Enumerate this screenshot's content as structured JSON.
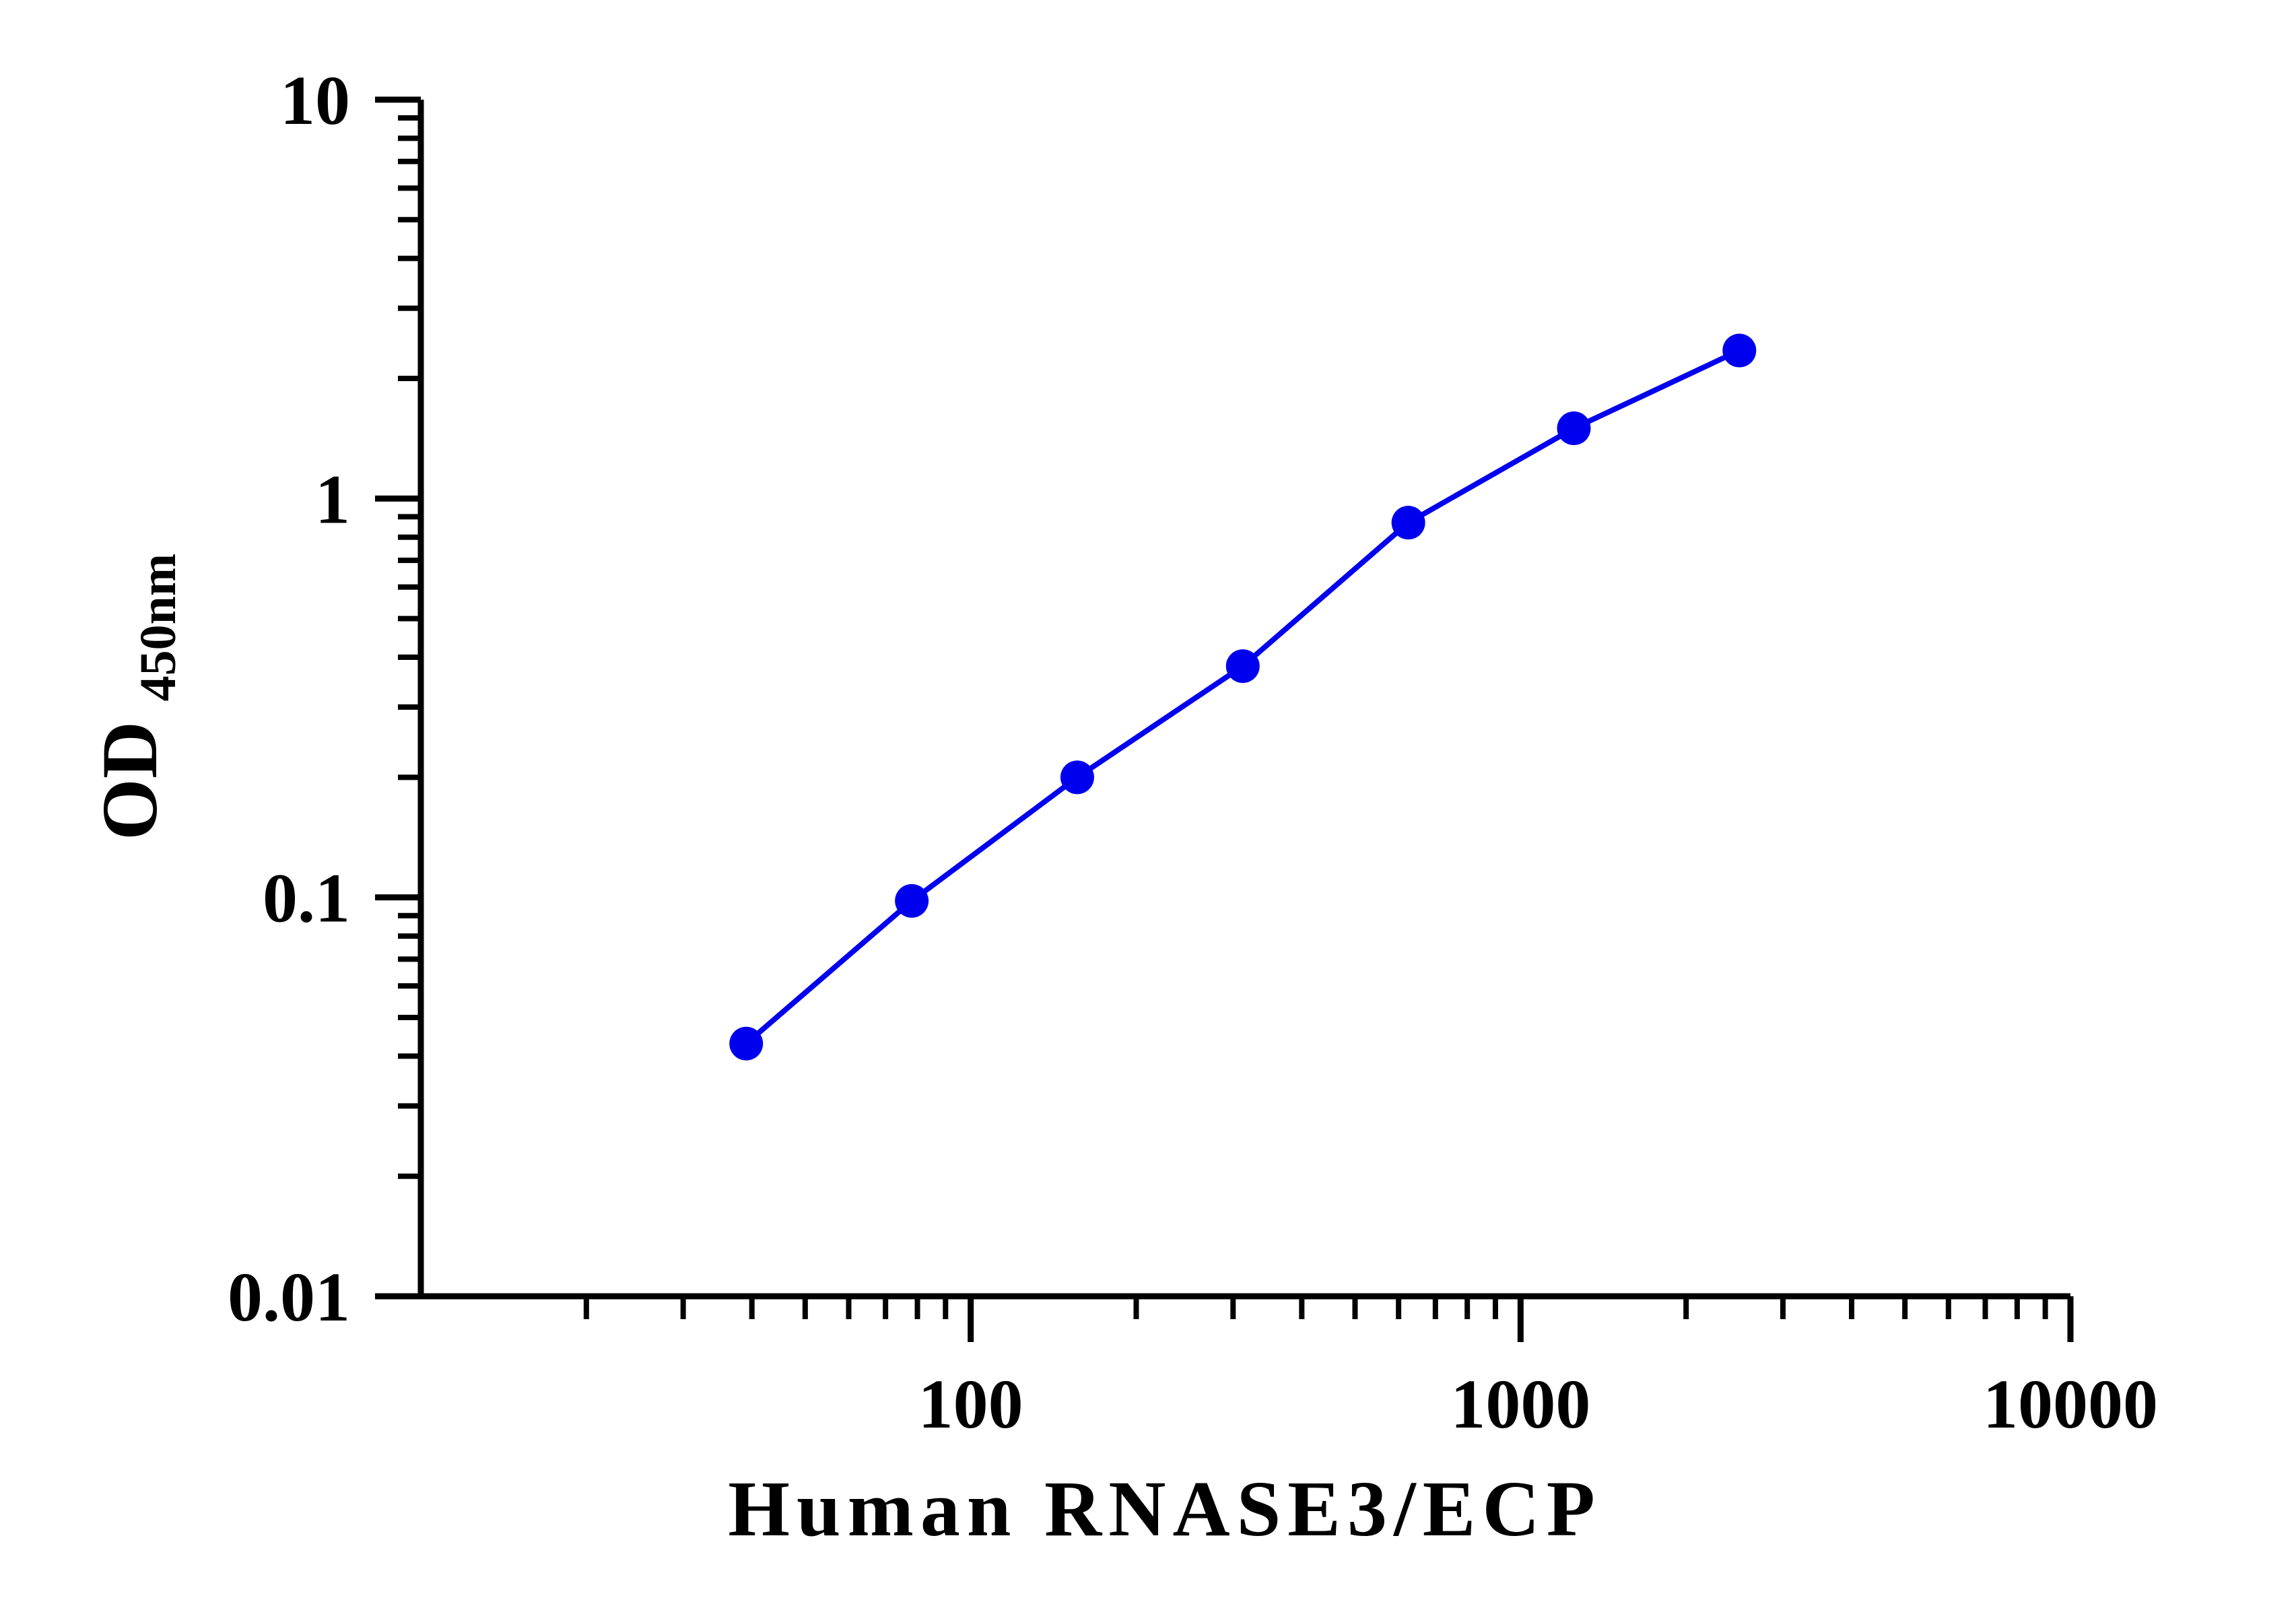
{
  "chart_data": {
    "type": "line",
    "title": "",
    "xlabel": "Human RNASE3/ECP",
    "ylabel": {
      "main": "OD",
      "subscript": "450nm"
    },
    "x_scale": "log",
    "y_scale": "log",
    "xlim": [
      10,
      10000
    ],
    "ylim": [
      0.01,
      10
    ],
    "x_tick_labels": [
      "100",
      "1000",
      "10000"
    ],
    "y_tick_labels": [
      "0.01",
      "0.1",
      "1",
      "10"
    ],
    "grid": false,
    "legend": "none",
    "series": [
      {
        "color": "#0000ee",
        "marker": "circle",
        "x": [
          39.06,
          78.13,
          156.25,
          312.5,
          625,
          1250,
          2500
        ],
        "y": [
          0.043,
          0.098,
          0.2,
          0.38,
          0.87,
          1.5,
          2.35
        ]
      }
    ]
  }
}
